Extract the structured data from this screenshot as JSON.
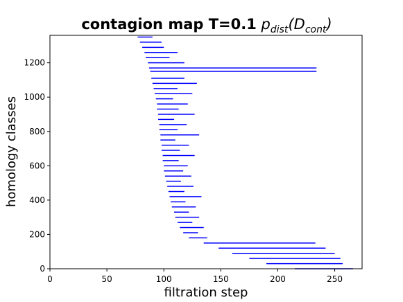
{
  "chart_data": {
    "type": "barcode",
    "title": "contagion map T=0.1",
    "title_math": [
      "p",
      "dist",
      "(D",
      "cont",
      ")"
    ],
    "x_label": "filtration step",
    "y_label": "homology classes",
    "color": "#0000ff",
    "xlim": [
      0,
      274
    ],
    "xticks": [
      0,
      50,
      100,
      150,
      200,
      250
    ],
    "ylim": [
      0,
      1360
    ],
    "yticks": [
      0,
      200,
      400,
      600,
      800,
      1000,
      1200
    ],
    "bars": {
      "y": [
        0,
        30,
        60,
        90,
        120,
        150,
        180,
        210,
        240,
        270,
        300,
        330,
        360,
        390,
        420,
        450,
        480,
        510,
        540,
        570,
        600,
        630,
        660,
        690,
        720,
        750,
        780,
        810,
        840,
        870,
        900,
        930,
        960,
        990,
        1020,
        1050,
        1080,
        1110,
        1150,
        1170,
        1200,
        1230,
        1260,
        1290,
        1320,
        1350
      ],
      "birth": [
        215,
        190,
        175,
        160,
        148,
        135,
        122,
        117,
        114,
        112,
        110,
        109,
        107,
        106,
        105,
        104,
        103,
        102,
        101,
        100,
        100,
        99,
        99,
        98,
        98,
        97,
        97,
        96,
        96,
        95,
        95,
        94,
        94,
        93,
        92,
        91,
        90,
        89,
        88,
        87,
        86,
        84,
        83,
        81,
        79,
        77
      ],
      "death": [
        266,
        257,
        255,
        250,
        242,
        233,
        138,
        130,
        135,
        125,
        131,
        122,
        128,
        119,
        133,
        118,
        126,
        115,
        124,
        117,
        121,
        113,
        127,
        114,
        122,
        110,
        131,
        112,
        120,
        109,
        127,
        113,
        121,
        108,
        125,
        112,
        129,
        118,
        234,
        234,
        118,
        105,
        112,
        100,
        98,
        90
      ]
    }
  }
}
